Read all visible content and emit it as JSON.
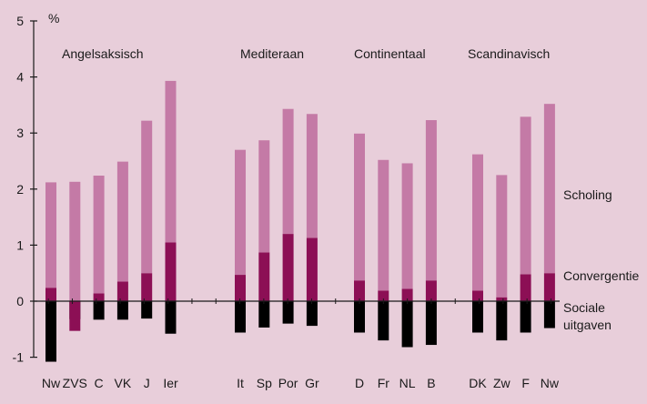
{
  "colors": {
    "background": "#E8CEDA",
    "scholing": "#C47AA6",
    "convergentie": "#8C0F55",
    "sociale_uitgaven": "#000000",
    "axis": "#1a1a1a"
  },
  "chart_data": {
    "type": "bar",
    "stacked": true,
    "y_unit_label": "%",
    "ylim": [
      -1,
      5
    ],
    "y_ticks": [
      "-1",
      "0",
      "1",
      "2",
      "3",
      "4",
      "5"
    ],
    "grid": false,
    "groups": [
      {
        "label": "Angelsaksisch",
        "categories": [
          "Nw",
          "ZVS",
          "C",
          "VK",
          "J",
          "Ier"
        ]
      },
      {
        "label": "Mediteraan",
        "categories": [
          "It",
          "Sp",
          "Por",
          "Gr"
        ]
      },
      {
        "label": "Continentaal",
        "categories": [
          "D",
          "Fr",
          "NL",
          "B"
        ]
      },
      {
        "label": "Scandinavisch",
        "categories": [
          "DK",
          "Zw",
          "F",
          "Nw"
        ]
      }
    ],
    "categories": [
      "Nw",
      "ZVS",
      "C",
      "VK",
      "J",
      "Ier",
      "It",
      "Sp",
      "Por",
      "Gr",
      "D",
      "Fr",
      "NL",
      "B",
      "DK",
      "Zw",
      "F",
      "Nw"
    ],
    "series": [
      {
        "name": "Scholing",
        "key": "scholing",
        "values": [
          1.88,
          2.13,
          2.1,
          2.14,
          2.72,
          2.88,
          2.23,
          2.0,
          2.23,
          2.21,
          2.62,
          2.33,
          2.24,
          2.86,
          2.43,
          2.18,
          2.81,
          3.02
        ]
      },
      {
        "name": "Convergentie",
        "key": "convergentie",
        "values": [
          0.24,
          -0.53,
          0.14,
          0.35,
          0.5,
          1.05,
          0.47,
          0.87,
          1.2,
          1.13,
          0.37,
          0.19,
          0.22,
          0.37,
          0.19,
          0.07,
          0.48,
          0.5
        ]
      },
      {
        "name": "Sociale uitgaven",
        "name_lines": [
          "Sociale",
          "uitgaven"
        ],
        "key": "sociale_uitgaven",
        "values": [
          -1.08,
          -0.32,
          -0.33,
          -0.33,
          -0.31,
          -0.58,
          -0.56,
          -0.47,
          -0.4,
          -0.44,
          -0.56,
          -0.7,
          -0.82,
          -0.78,
          -0.56,
          -0.7,
          -0.56,
          -0.48
        ]
      }
    ]
  }
}
